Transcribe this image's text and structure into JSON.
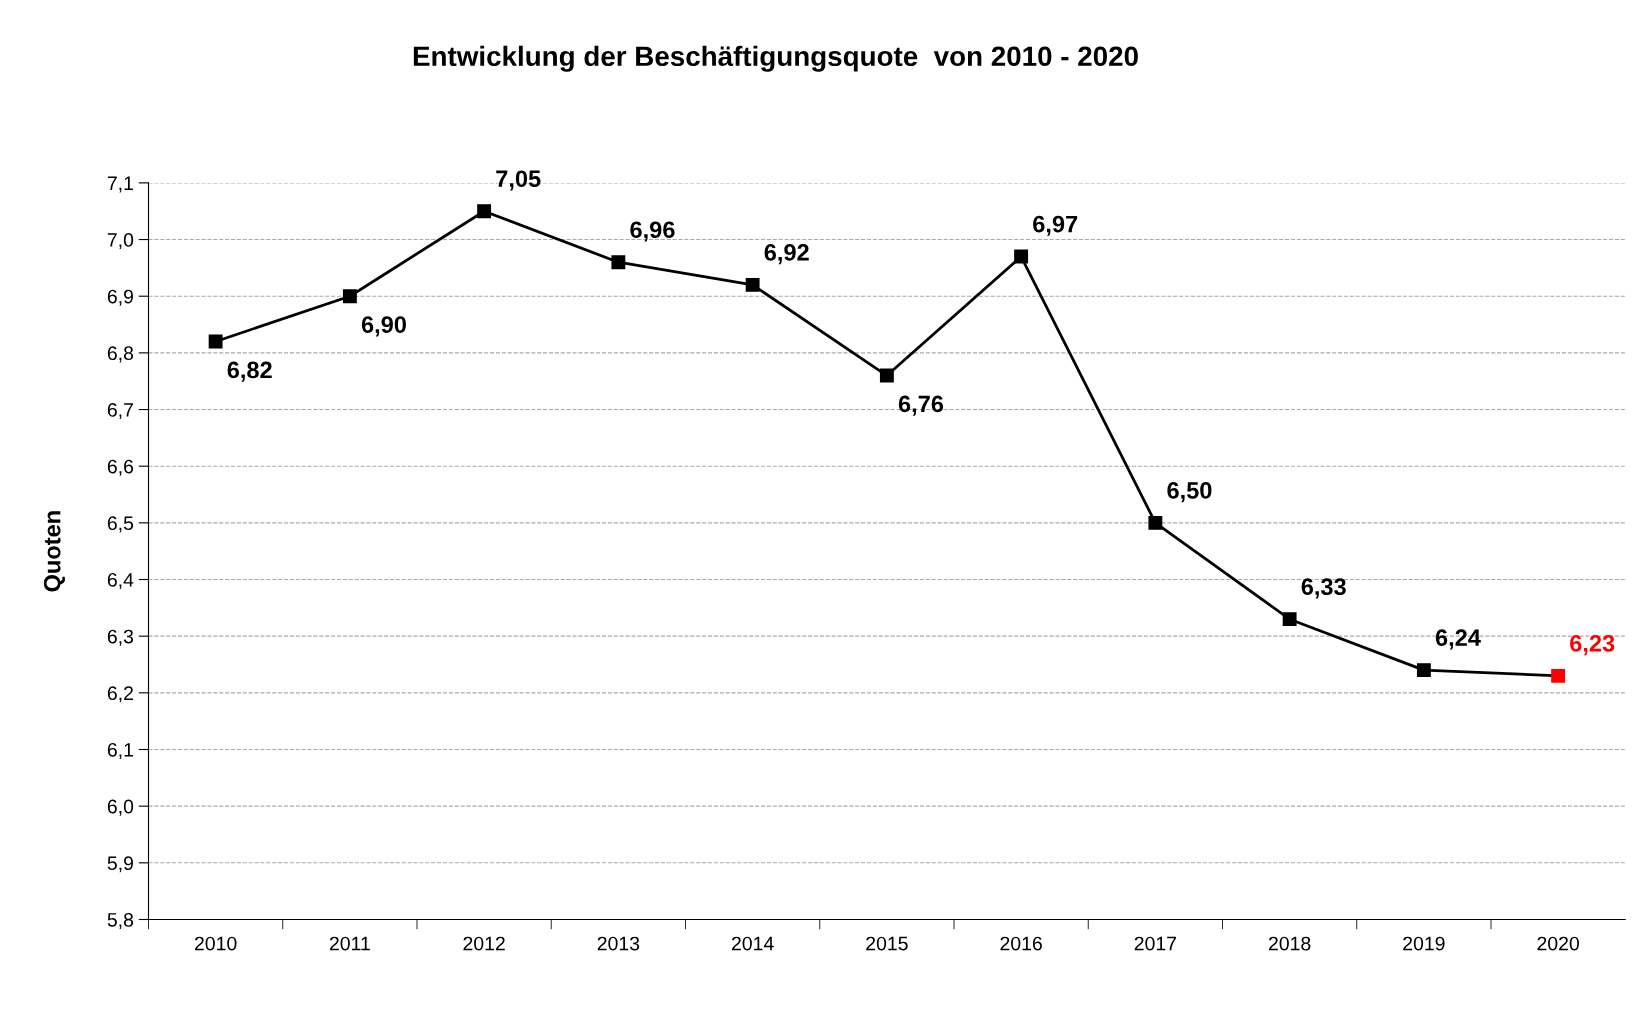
{
  "chart_data": {
    "type": "line",
    "title": "Entwicklung der Beschäftigungsquote  von 2010 - 2020",
    "ylabel": "Quoten",
    "categories": [
      "2010",
      "2011",
      "2012",
      "2013",
      "2014",
      "2015",
      "2016",
      "2017",
      "2018",
      "2019",
      "2020"
    ],
    "series": [
      {
        "color": "#000000",
        "colors": [
          "#000000",
          "#000000",
          "#000000",
          "#000000",
          "#000000",
          "#000000",
          "#000000",
          "#000000",
          "#000000",
          "#000000",
          "#ff0000"
        ],
        "values": [
          6.82,
          6.9,
          7.05,
          6.96,
          6.92,
          6.76,
          6.97,
          6.5,
          6.33,
          6.24,
          6.23
        ],
        "value_labels": [
          "6,82",
          "6,90",
          "7,05",
          "6,96",
          "6,92",
          "6,76",
          "6,97",
          "6,50",
          "6,33",
          "6,24",
          "6,23"
        ]
      }
    ],
    "ylim": [
      5.8,
      7.1
    ],
    "yticks": [
      {
        "value": 5.8,
        "label": "5,8"
      },
      {
        "value": 5.9,
        "label": "5,9"
      },
      {
        "value": 6.0,
        "label": "6,0"
      },
      {
        "value": 6.1,
        "label": "6,1"
      },
      {
        "value": 6.2,
        "label": "6,2"
      },
      {
        "value": 6.3,
        "label": "6,3"
      },
      {
        "value": 6.4,
        "label": "6,4"
      },
      {
        "value": 6.5,
        "label": "6,5"
      },
      {
        "value": 6.6,
        "label": "6,6"
      },
      {
        "value": 6.7,
        "label": "6,7"
      },
      {
        "value": 6.8,
        "label": "6,8"
      },
      {
        "value": 6.9,
        "label": "6,9"
      },
      {
        "value": 7.0,
        "label": "7,0"
      },
      {
        "value": 7.1,
        "label": "7,1"
      }
    ],
    "grid": "y",
    "marker": "square",
    "line_style": "solid",
    "legend": false
  }
}
